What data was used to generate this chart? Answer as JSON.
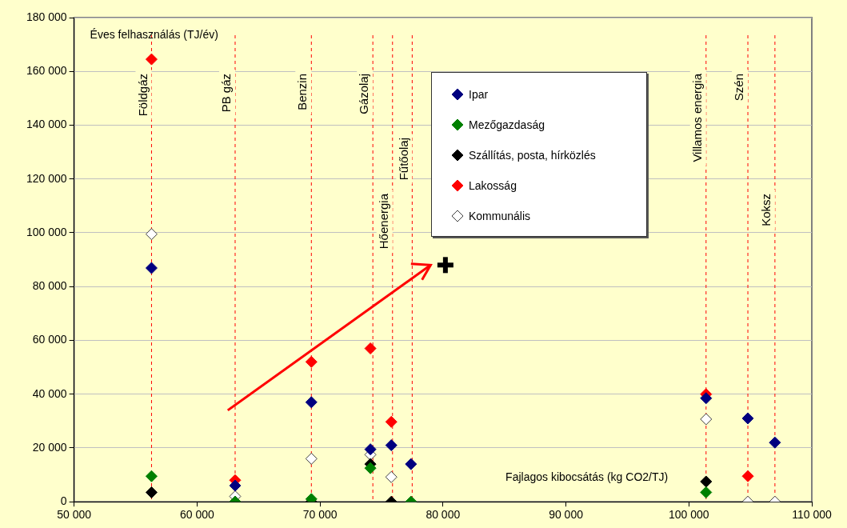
{
  "chart_data": {
    "type": "scatter",
    "xlabel": "Fajlagos kibocsátás (kg CO2/TJ)",
    "ylabel": "Éves felhasználás (TJ/év)",
    "x": [
      56300,
      63100,
      69300,
      74100,
      75800,
      77400,
      101400,
      104800,
      107000
    ],
    "series": [
      {
        "name": "Ipar",
        "color": "#000080",
        "values": [
          86900,
          6000,
          37000,
          19500,
          21000,
          14000,
          38500,
          31000,
          22000
        ]
      },
      {
        "name": "Mezőgazdaság",
        "color": "#008000",
        "values": [
          9500,
          0,
          1000,
          12500,
          null,
          0,
          3500,
          null,
          null
        ]
      },
      {
        "name": "Szállítás, posta, hírközlés",
        "color": "#000000",
        "values": [
          3500,
          0,
          0,
          14000,
          0,
          null,
          7500,
          null,
          null
        ]
      },
      {
        "name": "Lakosság",
        "color": "#ff0000",
        "values": [
          164500,
          8000,
          52000,
          57000,
          29700,
          null,
          40000,
          9500,
          null
        ]
      },
      {
        "name": "Kommunális",
        "color": "#ffffff",
        "values": [
          99500,
          2000,
          16000,
          17500,
          9200,
          0,
          30700,
          0,
          0
        ]
      }
    ],
    "ref_lines": [
      {
        "axis": "x",
        "value": 56300,
        "label": "Földgáz",
        "color": "#ff0000",
        "line_style": "dashed"
      },
      {
        "axis": "x",
        "value": 63100,
        "label": "PB gáz",
        "color": "#ff0000",
        "line_style": "dashed"
      },
      {
        "axis": "x",
        "value": 69300,
        "label": "Benzin",
        "color": "#ff0000",
        "line_style": "dashed"
      },
      {
        "axis": "x",
        "value": 74300,
        "label": "Gázolaj",
        "color": "#ff0000",
        "line_style": "dashed"
      },
      {
        "axis": "x",
        "value": 75900,
        "label": "Hőenergia",
        "color": "#ff0000",
        "line_style": "dashed"
      },
      {
        "axis": "x",
        "value": 77500,
        "label": "Fűtőolaj",
        "color": "#ff0000",
        "line_style": "dashed"
      },
      {
        "axis": "x",
        "value": 101400,
        "label": "Villamos energia",
        "color": "#ff0000",
        "line_style": "dashed"
      },
      {
        "axis": "x",
        "value": 104800,
        "label": "Szén",
        "color": "#ff0000",
        "line_style": "dashed"
      },
      {
        "axis": "x",
        "value": 107000,
        "label": "Koksz",
        "color": "#ff0000",
        "line_style": "dashed"
      }
    ],
    "xlim": [
      50000,
      110000
    ],
    "xticks": [
      {
        "value": 50000,
        "label": "50 000"
      },
      {
        "value": 60000,
        "label": "60 000"
      },
      {
        "value": 70000,
        "label": "70 000"
      },
      {
        "value": 80000,
        "label": "80 000"
      },
      {
        "value": 90000,
        "label": "90 000"
      },
      {
        "value": 100000,
        "label": "100 000"
      },
      {
        "value": 110000,
        "label": "110 000"
      }
    ],
    "ylim": [
      0,
      180000
    ],
    "yticks": [
      0,
      {
        "value": 20000,
        "label": "20 000"
      },
      {
        "value": 40000,
        "label": "40 000"
      },
      {
        "value": 60000,
        "label": "60 000"
      },
      {
        "value": 80000,
        "label": "80 000"
      },
      {
        "value": 100000,
        "label": "100 000"
      },
      {
        "value": 120000,
        "label": "120 000"
      },
      {
        "value": 140000,
        "label": "140 000"
      },
      {
        "value": 160000,
        "label": "160 000"
      },
      {
        "value": 180000,
        "label": "180 000"
      }
    ],
    "grid": "y",
    "legend": "top right",
    "marker": "diamond"
  }
}
